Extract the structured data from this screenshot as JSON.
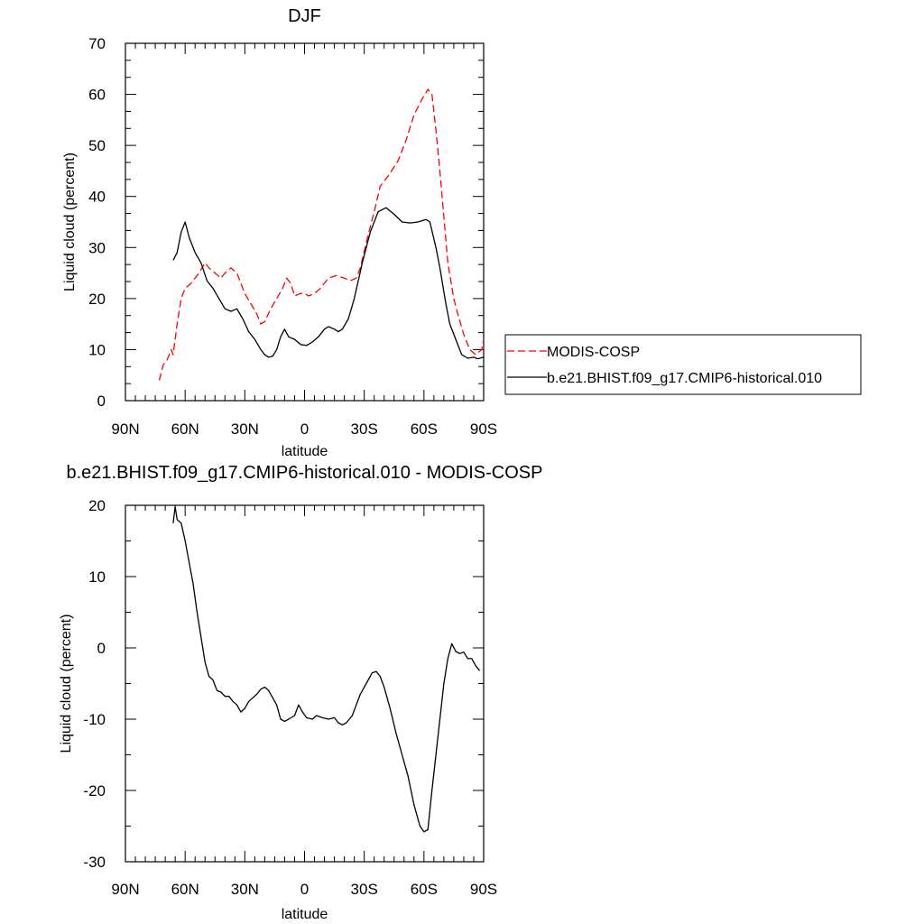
{
  "chart_data": [
    {
      "type": "line",
      "title": "DJF",
      "xlabel": "latitude",
      "ylabel": "Liquid cloud (percent)",
      "xlim": [
        90,
        -90
      ],
      "ylim": [
        0,
        70
      ],
      "x_ticks": [
        90,
        60,
        30,
        0,
        -30,
        -60,
        -90
      ],
      "x_tick_labels": [
        "90N",
        "60N",
        "30N",
        "0",
        "30S",
        "60S",
        "90S"
      ],
      "y_ticks": [
        0,
        10,
        20,
        30,
        40,
        50,
        60,
        70
      ],
      "y_tick_labels": [
        "0",
        "10",
        "20",
        "30",
        "40",
        "50",
        "60",
        "70"
      ],
      "grid": false,
      "legend": {
        "placement": "right",
        "entries": [
          {
            "name": "MODIS-COSP",
            "color": "#ff0000",
            "dash": "dashed"
          },
          {
            "name": "b.e21.BHIST.f09_g17.CMIP6-historical.010",
            "color": "#000000",
            "dash": "solid"
          }
        ]
      },
      "series": [
        {
          "name": "MODIS-COSP",
          "color": "#ff0000",
          "dash": "dashed",
          "points": [
            [
              73,
              4
            ],
            [
              71,
              7
            ],
            [
              69,
              8
            ],
            [
              67,
              10
            ],
            [
              66,
              9
            ],
            [
              64,
              15
            ],
            [
              62,
              20
            ],
            [
              60,
              22
            ],
            [
              57,
              23
            ],
            [
              53,
              25
            ],
            [
              50,
              27
            ],
            [
              48,
              26
            ],
            [
              45,
              25
            ],
            [
              42,
              24
            ],
            [
              40,
              25
            ],
            [
              37,
              26
            ],
            [
              34,
              25
            ],
            [
              30,
              21
            ],
            [
              27,
              19
            ],
            [
              24,
              17
            ],
            [
              22,
              15
            ],
            [
              20,
              15.5
            ],
            [
              17,
              18
            ],
            [
              14,
              20
            ],
            [
              11,
              22
            ],
            [
              9,
              24
            ],
            [
              7,
              23
            ],
            [
              5,
              20.5
            ],
            [
              2,
              21
            ],
            [
              0,
              21
            ],
            [
              -2,
              20.5
            ],
            [
              -5,
              21
            ],
            [
              -8,
              22
            ],
            [
              -12,
              24
            ],
            [
              -16,
              24.5
            ],
            [
              -20,
              24
            ],
            [
              -23,
              23.5
            ],
            [
              -26,
              24
            ],
            [
              -28,
              26
            ],
            [
              -31,
              31
            ],
            [
              -35,
              37
            ],
            [
              -38,
              42
            ],
            [
              -42,
              44
            ],
            [
              -47,
              47
            ],
            [
              -51,
              51
            ],
            [
              -55,
              56
            ],
            [
              -59,
              59
            ],
            [
              -62,
              61
            ],
            [
              -64,
              60
            ],
            [
              -66,
              53
            ],
            [
              -68,
              45
            ],
            [
              -70,
              36
            ],
            [
              -72,
              27
            ],
            [
              -75,
              20
            ],
            [
              -77,
              17
            ],
            [
              -80,
              13
            ],
            [
              -83,
              10
            ],
            [
              -86,
              9
            ],
            [
              -89,
              10
            ],
            [
              -90,
              12
            ]
          ]
        },
        {
          "name": "b.e21.BHIST.f09_g17.CMIP6-historical.010",
          "color": "#000000",
          "dash": "solid",
          "points": [
            [
              66,
              27.5
            ],
            [
              64,
              29
            ],
            [
              62,
              33
            ],
            [
              60,
              35
            ],
            [
              58,
              32
            ],
            [
              55,
              29
            ],
            [
              52,
              27
            ],
            [
              49,
              23.5
            ],
            [
              46,
              22
            ],
            [
              43,
              20
            ],
            [
              40,
              18
            ],
            [
              37,
              17.5
            ],
            [
              34,
              18
            ],
            [
              31,
              16
            ],
            [
              28,
              13.5
            ],
            [
              25,
              12
            ],
            [
              22,
              10
            ],
            [
              20,
              9
            ],
            [
              18,
              8.5
            ],
            [
              16,
              8.7
            ],
            [
              14,
              10
            ],
            [
              12,
              12.5
            ],
            [
              10,
              14
            ],
            [
              8,
              12.5
            ],
            [
              5,
              12
            ],
            [
              2,
              11
            ],
            [
              -1,
              10.8
            ],
            [
              -4,
              11.5
            ],
            [
              -7,
              12.5
            ],
            [
              -10,
              14
            ],
            [
              -12,
              14.5
            ],
            [
              -15,
              14
            ],
            [
              -17,
              13.5
            ],
            [
              -19,
              14
            ],
            [
              -22,
              16
            ],
            [
              -25,
              20
            ],
            [
              -29,
              27
            ],
            [
              -33,
              33
            ],
            [
              -37,
              37
            ],
            [
              -41,
              37.8
            ],
            [
              -45,
              36.5
            ],
            [
              -49,
              35
            ],
            [
              -53,
              34.8
            ],
            [
              -57,
              35
            ],
            [
              -61,
              35.5
            ],
            [
              -63,
              35
            ],
            [
              -66,
              30
            ],
            [
              -68,
              26
            ],
            [
              -71,
              19
            ],
            [
              -73,
              15
            ],
            [
              -76,
              12
            ],
            [
              -79,
              9
            ],
            [
              -82,
              8.3
            ],
            [
              -85,
              8.5
            ],
            [
              -87,
              8.2
            ],
            [
              -90,
              8.5
            ]
          ]
        }
      ]
    },
    {
      "type": "line",
      "title": "b.e21.BHIST.f09_g17.CMIP6-historical.010 - MODIS-COSP",
      "xlabel": "latitude",
      "ylabel": "Liquid cloud (percent)",
      "xlim": [
        90,
        -90
      ],
      "ylim": [
        -30,
        20
      ],
      "x_ticks": [
        90,
        60,
        30,
        0,
        -30,
        -60,
        -90
      ],
      "x_tick_labels": [
        "90N",
        "60N",
        "30N",
        "0",
        "30S",
        "60S",
        "90S"
      ],
      "y_ticks": [
        -30,
        -20,
        -10,
        0,
        10,
        20
      ],
      "y_tick_labels": [
        "-30",
        "-20",
        "-10",
        "0",
        "10",
        "20"
      ],
      "grid": false,
      "series": [
        {
          "color": "#000000",
          "dash": "solid",
          "points": [
            [
              66,
              17.5
            ],
            [
              65,
              19.8
            ],
            [
              64,
              18
            ],
            [
              62,
              17.5
            ],
            [
              60,
              15
            ],
            [
              58,
              12
            ],
            [
              56,
              9
            ],
            [
              54,
              5
            ],
            [
              52,
              1.5
            ],
            [
              50,
              -2
            ],
            [
              48,
              -4
            ],
            [
              46,
              -4.5
            ],
            [
              44,
              -6
            ],
            [
              42,
              -6.2
            ],
            [
              40,
              -6.8
            ],
            [
              38,
              -6.8
            ],
            [
              36,
              -7.5
            ],
            [
              34,
              -8
            ],
            [
              32,
              -9
            ],
            [
              30,
              -8.5
            ],
            [
              28,
              -7.5
            ],
            [
              26,
              -7
            ],
            [
              24,
              -6.5
            ],
            [
              22,
              -5.8
            ],
            [
              20,
              -5.5
            ],
            [
              18,
              -6
            ],
            [
              16,
              -7
            ],
            [
              14,
              -8
            ],
            [
              12,
              -10
            ],
            [
              10,
              -10.3
            ],
            [
              8,
              -10
            ],
            [
              5,
              -9.5
            ],
            [
              3,
              -8
            ],
            [
              1,
              -9
            ],
            [
              -1,
              -9.8
            ],
            [
              -4,
              -10
            ],
            [
              -6,
              -9.5
            ],
            [
              -9,
              -9.8
            ],
            [
              -12,
              -10
            ],
            [
              -15,
              -9.8
            ],
            [
              -17,
              -10.5
            ],
            [
              -19,
              -10.8
            ],
            [
              -21,
              -10.5
            ],
            [
              -24,
              -9.5
            ],
            [
              -26,
              -8
            ],
            [
              -28,
              -6.5
            ],
            [
              -31,
              -5
            ],
            [
              -34,
              -3.5
            ],
            [
              -36,
              -3.3
            ],
            [
              -38,
              -4
            ],
            [
              -40,
              -5.5
            ],
            [
              -43,
              -8.5
            ],
            [
              -46,
              -12
            ],
            [
              -49,
              -15
            ],
            [
              -52,
              -18
            ],
            [
              -55,
              -22
            ],
            [
              -58,
              -25
            ],
            [
              -60,
              -25.8
            ],
            [
              -62,
              -25.5
            ],
            [
              -64,
              -20
            ],
            [
              -66,
              -15
            ],
            [
              -68,
              -10
            ],
            [
              -70,
              -5
            ],
            [
              -72,
              -1.5
            ],
            [
              -74,
              0.6
            ],
            [
              -76,
              -0.5
            ],
            [
              -78,
              -0.8
            ],
            [
              -80,
              -0.6
            ],
            [
              -82,
              -1.5
            ],
            [
              -84,
              -1.5
            ],
            [
              -86,
              -2.5
            ],
            [
              -88,
              -3.2
            ]
          ]
        }
      ]
    }
  ]
}
